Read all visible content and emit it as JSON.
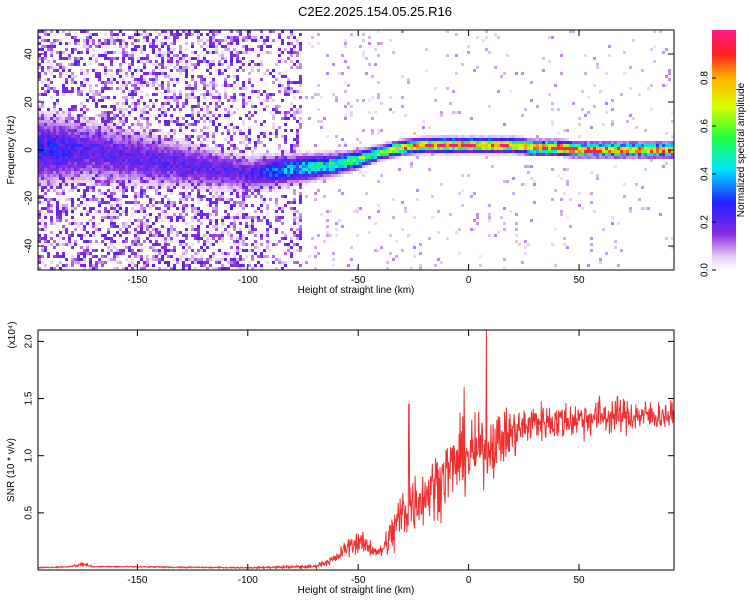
{
  "title": "C2E2.2025.154.05.25.R16",
  "chart_data": [
    {
      "type": "heatmap",
      "xlabel": "Height of straight line (km)",
      "ylabel": "Frequency (Hz)",
      "xlim": [
        -195,
        93
      ],
      "ylim": [
        -50,
        50
      ],
      "x_ticks": [
        "-150",
        "-100",
        "-50",
        "0",
        "50"
      ],
      "y_ticks": [
        "-40",
        "-20",
        "0",
        "20",
        "40"
      ],
      "colorbar": {
        "label": "Normalized spectral amplitude",
        "range": [
          0,
          1
        ],
        "ticks": [
          "0.0",
          "0.2",
          "0.4",
          "0.6",
          "0.8"
        ],
        "colormap": "rainbow"
      },
      "colors": {
        "low": "#8a2be2",
        "mid": "#00c0ff",
        "high": "#ff2020"
      },
      "ridge_profile": {
        "x": [
          -185,
          -175,
          -100,
          -90,
          -80,
          -70,
          -60,
          -50,
          -40,
          -30,
          -20,
          -10,
          0,
          10,
          20,
          30,
          40,
          50,
          60,
          70,
          80,
          93
        ],
        "frequency_hz": [
          0,
          0,
          -10,
          -9,
          -8,
          -7,
          -6,
          -4,
          -1,
          1,
          2,
          2,
          2,
          2,
          2,
          1,
          1,
          0,
          0,
          0,
          0,
          0
        ],
        "amplitude": [
          0.25,
          0.2,
          0.2,
          0.3,
          0.4,
          0.45,
          0.5,
          0.55,
          0.6,
          0.75,
          0.85,
          0.9,
          0.9,
          0.9,
          0.85,
          0.85,
          0.9,
          0.9,
          0.85,
          0.8,
          0.8,
          0.85
        ]
      }
    },
    {
      "type": "line",
      "xlabel": "Height of straight line (km)",
      "ylabel": "SNR (10 * v/v)",
      "scale_note": "(x10⁴)",
      "xlim": [
        -195,
        93
      ],
      "ylim": [
        0,
        2.1
      ],
      "x_ticks": [
        "-150",
        "-100",
        "-50",
        "0",
        "50"
      ],
      "y_ticks": [
        "0.5",
        "1.0",
        "1.5",
        "2.0"
      ],
      "color": "#ee3030",
      "envelope": {
        "x": [
          -195,
          -180,
          -175,
          -170,
          -100,
          -70,
          -60,
          -55,
          -50,
          -45,
          -40,
          -35,
          -30,
          -25,
          -20,
          -15,
          -10,
          -5,
          0,
          5,
          10,
          15,
          20,
          25,
          30,
          40,
          50,
          60,
          70,
          80,
          93
        ],
        "mean": [
          0.02,
          0.03,
          0.05,
          0.03,
          0.02,
          0.03,
          0.1,
          0.2,
          0.25,
          0.2,
          0.15,
          0.3,
          0.5,
          0.6,
          0.65,
          0.75,
          0.85,
          0.95,
          1.0,
          1.05,
          1.1,
          1.15,
          1.2,
          1.25,
          1.3,
          1.3,
          1.32,
          1.35,
          1.35,
          1.35,
          1.35
        ],
        "spread": [
          0.01,
          0.01,
          0.04,
          0.01,
          0.01,
          0.03,
          0.08,
          0.15,
          0.18,
          0.15,
          0.1,
          0.35,
          0.5,
          0.5,
          0.45,
          0.5,
          0.55,
          0.55,
          0.55,
          0.5,
          0.5,
          0.45,
          0.4,
          0.35,
          0.3,
          0.3,
          0.3,
          0.3,
          0.28,
          0.25,
          0.2
        ]
      },
      "spikes": [
        {
          "x": -27,
          "y": 1.45
        },
        {
          "x": -2,
          "y": 1.6
        },
        {
          "x": 8,
          "y": 2.1
        }
      ]
    }
  ]
}
